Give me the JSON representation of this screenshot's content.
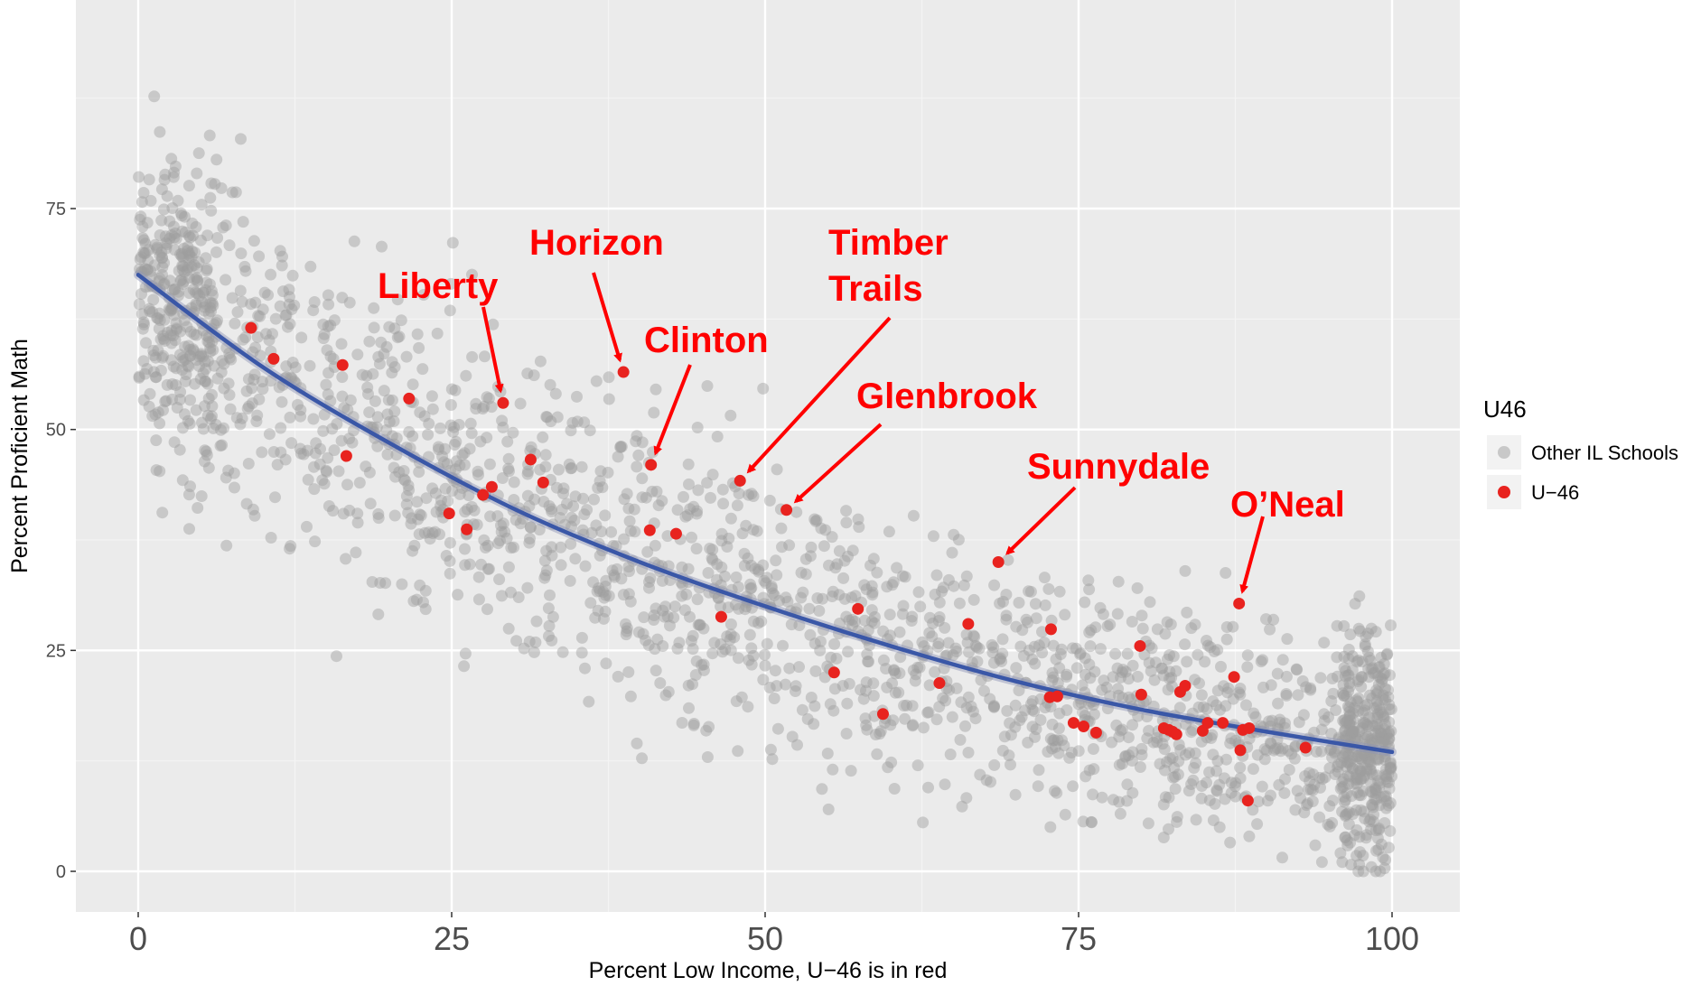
{
  "chart_data": {
    "type": "scatter",
    "xlabel": "Percent Low Income, U−46 is in red",
    "ylabel": "Percent Proficient Math",
    "xlim": [
      -5,
      103
    ],
    "ylim": [
      -4,
      98
    ],
    "x_ticks": [
      0,
      25,
      50,
      75,
      100
    ],
    "y_ticks": [
      0,
      25,
      50,
      75
    ],
    "grid": true,
    "legend": {
      "title": "U46",
      "position": "right",
      "entries": [
        {
          "label": "Other IL Schools",
          "color": "#9e9e9e"
        },
        {
          "label": "U−46",
          "color": "#e8231f"
        }
      ]
    },
    "series": [
      {
        "name": "U−46",
        "color": "#e8231f",
        "points": [
          [
            9,
            61.5
          ],
          [
            10.8,
            58
          ],
          [
            16.3,
            57.3
          ],
          [
            16.6,
            47
          ],
          [
            21.6,
            53.5
          ],
          [
            24.8,
            40.5
          ],
          [
            26.2,
            38.7
          ],
          [
            27.5,
            42.6
          ],
          [
            28.2,
            43.5
          ],
          [
            29.1,
            53
          ],
          [
            31.3,
            46.6
          ],
          [
            32.3,
            44
          ],
          [
            38.7,
            56.5
          ],
          [
            40.9,
            46
          ],
          [
            40.8,
            38.6
          ],
          [
            42.9,
            38.2
          ],
          [
            46.5,
            28.8
          ],
          [
            48,
            44.2
          ],
          [
            51.7,
            40.9
          ],
          [
            55.5,
            22.5
          ],
          [
            57.4,
            29.7
          ],
          [
            59.4,
            17.8
          ],
          [
            63.9,
            21.3
          ],
          [
            66.2,
            28
          ],
          [
            68.6,
            35
          ],
          [
            72.7,
            19.7
          ],
          [
            72.8,
            27.4
          ],
          [
            73.3,
            19.8
          ],
          [
            74.6,
            16.8
          ],
          [
            75.4,
            16.4
          ],
          [
            76.4,
            15.7
          ],
          [
            79.9,
            25.5
          ],
          [
            80,
            20
          ],
          [
            81.8,
            16.2
          ],
          [
            82.2,
            16
          ],
          [
            82.5,
            15.8
          ],
          [
            82.8,
            15.5
          ],
          [
            83.1,
            20.3
          ],
          [
            83.5,
            21
          ],
          [
            84.9,
            15.9
          ],
          [
            85.3,
            16.8
          ],
          [
            86.5,
            16.8
          ],
          [
            87.4,
            22
          ],
          [
            87.8,
            30.3
          ],
          [
            87.9,
            13.7
          ],
          [
            88.1,
            16
          ],
          [
            88.5,
            8
          ],
          [
            88.6,
            16.2
          ],
          [
            93.1,
            14
          ]
        ]
      },
      {
        "name": "Other IL Schools",
        "color": "#9e9e9e",
        "generated": true
      }
    ],
    "trend": {
      "color": "#3a57a7",
      "points": [
        [
          0,
          67.5
        ],
        [
          10,
          57
        ],
        [
          20,
          48.5
        ],
        [
          30,
          41
        ],
        [
          40,
          35
        ],
        [
          50,
          30
        ],
        [
          60,
          25.5
        ],
        [
          70,
          21.5
        ],
        [
          80,
          18.3
        ],
        [
          90,
          15.8
        ],
        [
          100,
          13.5
        ]
      ]
    },
    "annotations": [
      {
        "text": "Liberty",
        "target": [
          29.1,
          53
        ]
      },
      {
        "text": "Horizon",
        "target": [
          38.7,
          56.5
        ]
      },
      {
        "text": "Clinton",
        "target": [
          40.9,
          46
        ]
      },
      {
        "text": "Timber\nTrails",
        "target": [
          48,
          44.2
        ]
      },
      {
        "text": "Glenbrook",
        "target": [
          51.7,
          40.9
        ]
      },
      {
        "text": "Sunnydale",
        "target": [
          68.6,
          35
        ]
      },
      {
        "text": "O’Neal",
        "target": [
          87.8,
          30.3
        ]
      }
    ]
  }
}
